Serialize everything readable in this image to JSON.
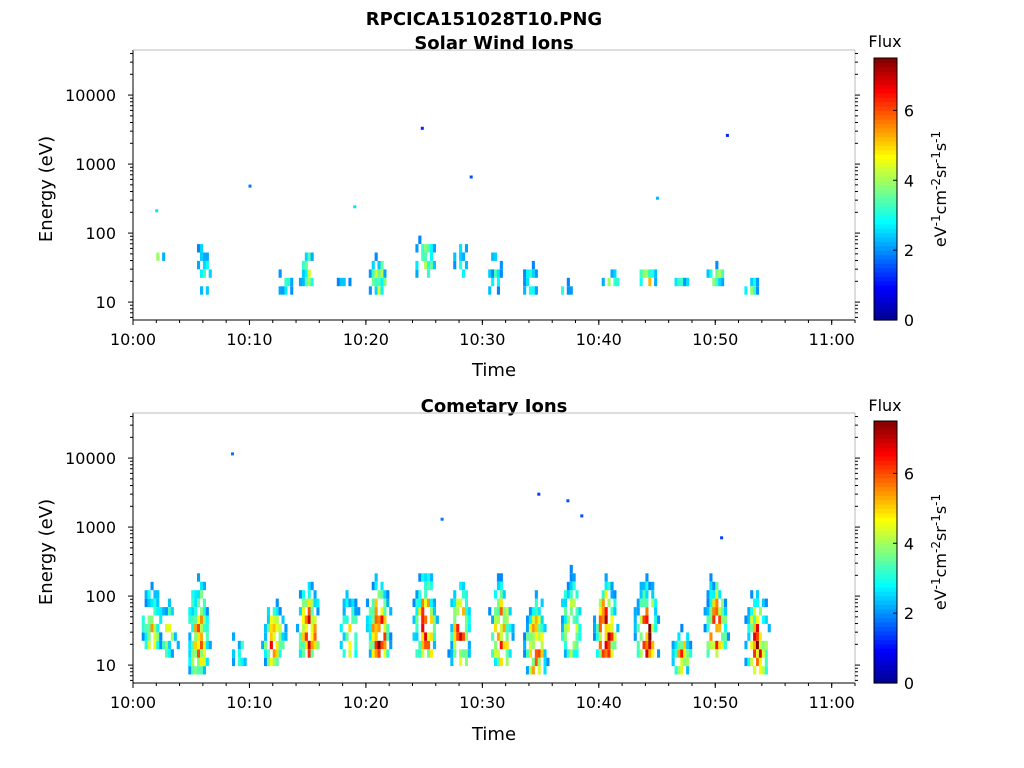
{
  "figure_title": "RPCICA151028T10.PNG",
  "colors": {
    "colormap": "jet",
    "stops": [
      "#00008f",
      "#0000ff",
      "#0080ff",
      "#00ffff",
      "#80ff80",
      "#ffff00",
      "#ff8000",
      "#ff0000",
      "#800000"
    ]
  },
  "chart_data": [
    {
      "type": "heatmap",
      "title": "Solar Wind Ions",
      "xlabel": "Time",
      "ylabel": "Energy (eV)",
      "x_scale": "time",
      "y_scale": "log",
      "xlim": [
        "10:00",
        "11:02"
      ],
      "ylim": [
        5.5,
        45000
      ],
      "x_ticks": [
        "10:00",
        "10:10",
        "10:20",
        "10:30",
        "10:40",
        "10:50",
        "11:00"
      ],
      "y_ticks": [
        "10",
        "100",
        "1000",
        "10000"
      ],
      "colorbar": {
        "title": "Flux",
        "label": "eV-1cm-2sr-1s-1",
        "range": [
          0,
          7.5
        ],
        "ticks": [
          "0",
          "2",
          "4",
          "6"
        ]
      },
      "bursts": [
        {
          "t": "10:00",
          "e_min": 35,
          "e_max": 45,
          "peak": 3.0
        },
        {
          "t": "10:02",
          "e_min": 35,
          "e_max": 80,
          "peak": 3.4
        },
        {
          "t": "10:06",
          "e_min": 12,
          "e_max": 350,
          "peak": 3.0
        },
        {
          "t": "10:13",
          "e_min": 12,
          "e_max": 60,
          "peak": 3.0
        },
        {
          "t": "10:15",
          "e_min": 15,
          "e_max": 140,
          "peak": 3.8
        },
        {
          "t": "10:18",
          "e_min": 15,
          "e_max": 25,
          "peak": 3.2
        },
        {
          "t": "10:21",
          "e_min": 12,
          "e_max": 110,
          "peak": 4.2
        },
        {
          "t": "10:25",
          "e_min": 22,
          "e_max": 180,
          "peak": 4.3
        },
        {
          "t": "10:28",
          "e_min": 22,
          "e_max": 200,
          "peak": 3.0
        },
        {
          "t": "10:31",
          "e_min": 12,
          "e_max": 160,
          "peak": 3.0
        },
        {
          "t": "10:34",
          "e_min": 12,
          "e_max": 90,
          "peak": 3.0
        },
        {
          "t": "10:37",
          "e_min": 12,
          "e_max": 30,
          "peak": 3.0
        },
        {
          "t": "10:41",
          "e_min": 15,
          "e_max": 40,
          "peak": 4.6
        },
        {
          "t": "10:44",
          "e_min": 15,
          "e_max": 50,
          "peak": 4.8
        },
        {
          "t": "10:47",
          "e_min": 18,
          "e_max": 25,
          "peak": 3.0
        },
        {
          "t": "10:50",
          "e_min": 18,
          "e_max": 50,
          "peak": 4.0
        },
        {
          "t": "10:53",
          "e_min": 12,
          "e_max": 45,
          "peak": 3.4
        }
      ],
      "points": [
        {
          "t": "10:24.8",
          "e": 3300,
          "flux": 1.2
        },
        {
          "t": "10:29",
          "e": 650,
          "flux": 1.5
        },
        {
          "t": "10:51",
          "e": 2600,
          "flux": 1.2
        },
        {
          "t": "10:10",
          "e": 480,
          "flux": 1.8
        },
        {
          "t": "10:02",
          "e": 210,
          "flux": 2.6
        },
        {
          "t": "10:19",
          "e": 240,
          "flux": 2.6
        },
        {
          "t": "10:45",
          "e": 320,
          "flux": 2.3
        }
      ]
    },
    {
      "type": "heatmap",
      "title": "Cometary Ions",
      "xlabel": "Time",
      "ylabel": "Energy (eV)",
      "x_scale": "time",
      "y_scale": "log",
      "xlim": [
        "10:00",
        "11:02"
      ],
      "ylim": [
        5.5,
        45000
      ],
      "x_ticks": [
        "10:00",
        "10:10",
        "10:20",
        "10:30",
        "10:40",
        "10:50",
        "11:00"
      ],
      "y_ticks": [
        "10",
        "100",
        "1000",
        "10000"
      ],
      "colorbar": {
        "title": "Flux",
        "label": "eV-1cm-2sr-1s-1",
        "range": [
          0,
          7.5
        ],
        "ticks": [
          "0",
          "2",
          "4",
          "6"
        ]
      },
      "bursts": [
        {
          "t": "10:01.5",
          "e_min": 16,
          "e_max": 350,
          "peak": 5.0
        },
        {
          "t": "10:03",
          "e_min": 14,
          "e_max": 300,
          "peak": 4.0
        },
        {
          "t": "10:05.5",
          "e_min": 7,
          "e_max": 900,
          "peak": 5.5
        },
        {
          "t": "10:09",
          "e_min": 8,
          "e_max": 150,
          "peak": 3.0
        },
        {
          "t": "10:12",
          "e_min": 11,
          "e_max": 170,
          "peak": 6.0
        },
        {
          "t": "10:15",
          "e_min": 12,
          "e_max": 400,
          "peak": 6.5
        },
        {
          "t": "10:18.5",
          "e_min": 12,
          "e_max": 400,
          "peak": 4.5
        },
        {
          "t": "10:21",
          "e_min": 12,
          "e_max": 600,
          "peak": 7.0
        },
        {
          "t": "10:25",
          "e_min": 12,
          "e_max": 700,
          "peak": 6.5
        },
        {
          "t": "10:28",
          "e_min": 11,
          "e_max": 650,
          "peak": 6.0
        },
        {
          "t": "10:31.5",
          "e_min": 11,
          "e_max": 500,
          "peak": 6.0
        },
        {
          "t": "10:34.5",
          "e_min": 7,
          "e_max": 300,
          "peak": 6.0
        },
        {
          "t": "10:37.5",
          "e_min": 12,
          "e_max": 800,
          "peak": 5.0
        },
        {
          "t": "10:40.5",
          "e_min": 12,
          "e_max": 500,
          "peak": 7.0
        },
        {
          "t": "10:44",
          "e_min": 12,
          "e_max": 400,
          "peak": 7.0
        },
        {
          "t": "10:47",
          "e_min": 8,
          "e_max": 60,
          "peak": 5.5
        },
        {
          "t": "10:50",
          "e_min": 12,
          "e_max": 550,
          "peak": 6.5
        },
        {
          "t": "10:53.5",
          "e_min": 8,
          "e_max": 300,
          "peak": 6.5
        }
      ],
      "points": [
        {
          "t": "10:08.5",
          "e": 11500,
          "flux": 1.8
        },
        {
          "t": "10:34.8",
          "e": 3000,
          "flux": 1.4
        },
        {
          "t": "10:37.3",
          "e": 2400,
          "flux": 1.5
        },
        {
          "t": "10:38.5",
          "e": 1450,
          "flux": 1.5
        },
        {
          "t": "10:26.5",
          "e": 1300,
          "flux": 1.8
        },
        {
          "t": "10:50.5",
          "e": 700,
          "flux": 1.4
        }
      ]
    }
  ]
}
